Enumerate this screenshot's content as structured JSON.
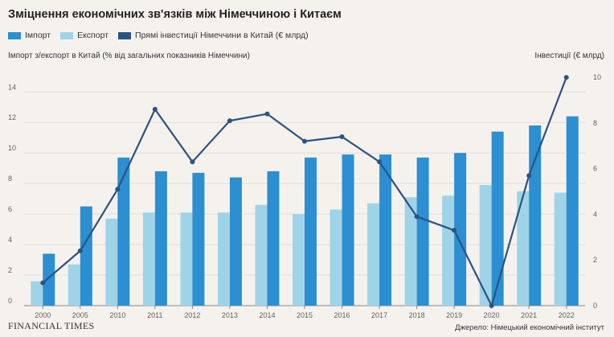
{
  "chart_data": {
    "type": "bar",
    "title": "Зміцнення економічних зв'язків між Німеччиною і Китаєм",
    "categories": [
      "2000",
      "2005",
      "2010",
      "2011",
      "2012",
      "2013",
      "2014",
      "2015",
      "2016",
      "2017",
      "2018",
      "2019",
      "2020",
      "2021",
      "2022"
    ],
    "ylabel": "Імпорт з/експорт в Китай (% від загальних показників Німеччини)",
    "y2label": "Інвестиції (€ млрд)",
    "ylim": [
      0,
      15.7
    ],
    "y2lim": [
      0,
      10.5
    ],
    "yticks": [
      0,
      2,
      4,
      6,
      8,
      10,
      12,
      14
    ],
    "y2ticks": [
      0,
      2,
      4,
      6,
      8,
      10
    ],
    "grid": true,
    "legend_position": "top-left",
    "series": [
      {
        "name": "Імпорт",
        "type": "bar",
        "axis": "left",
        "color": "#2b8fd1",
        "values": [
          3.4,
          6.5,
          9.7,
          8.8,
          8.7,
          8.4,
          8.8,
          9.7,
          9.9,
          9.9,
          9.7,
          10.0,
          11.4,
          11.8,
          12.4
        ]
      },
      {
        "name": "Експорт",
        "type": "bar",
        "axis": "left",
        "color": "#9fd4e8",
        "values": [
          1.6,
          2.7,
          5.7,
          6.1,
          6.1,
          6.1,
          6.6,
          6.0,
          6.3,
          6.7,
          7.1,
          7.2,
          7.9,
          7.5,
          7.4
        ]
      },
      {
        "name": "Прямі інвестиції Німеччини в Китай (€ млрд)",
        "type": "line",
        "axis": "right",
        "color": "#2b5382",
        "values": [
          1.0,
          2.4,
          5.1,
          8.6,
          6.3,
          8.1,
          8.4,
          7.2,
          7.4,
          6.3,
          3.9,
          3.3,
          0.0,
          5.7,
          10.0
        ]
      }
    ],
    "source": "Джерело: Німецький економічний інститут"
  },
  "branding": {
    "logo": "FINANCIAL TIMES"
  }
}
